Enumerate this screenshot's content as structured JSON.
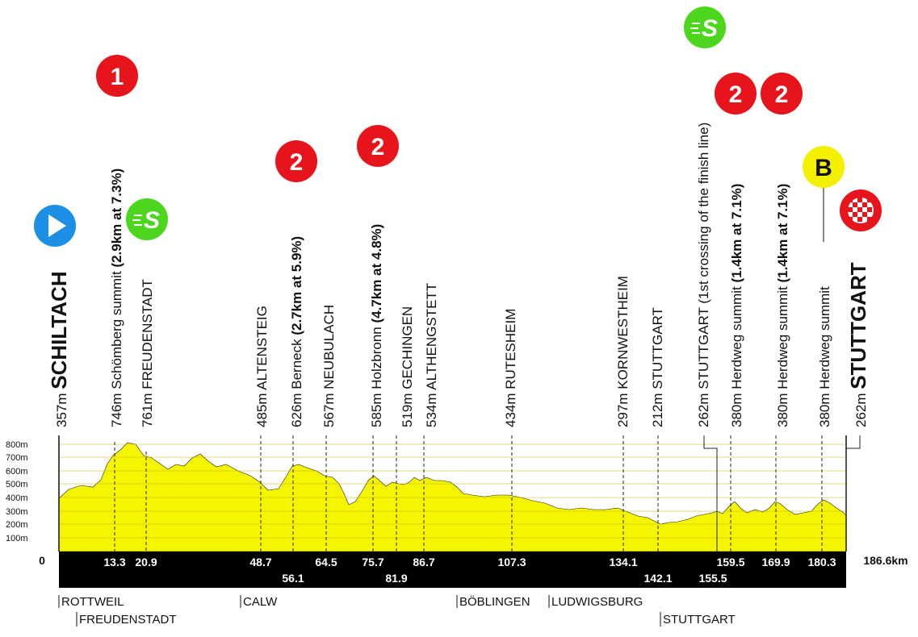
{
  "profile": {
    "start_km_label": "0",
    "end_km_label": "186.6km",
    "altitude_ticks": [
      "800m",
      "700m",
      "600m",
      "500m",
      "400m",
      "300m",
      "200m",
      "100m"
    ],
    "labels": [
      {
        "alt": "357m",
        "name": "SCHILTACH",
        "detail": "",
        "bold": true
      },
      {
        "alt": "746m",
        "name": "Schömberg summit",
        "detail": "(2.9km at 7.3%)",
        "bold": false
      },
      {
        "alt": "761m",
        "name": "FREUDENSTADT",
        "detail": "",
        "bold": false
      },
      {
        "alt": "485m",
        "name": "ALTENSTEIG",
        "detail": "",
        "bold": false
      },
      {
        "alt": "626m",
        "name": "Berneck",
        "detail": "(2.7km at 5.9%)",
        "bold": false
      },
      {
        "alt": "567m",
        "name": "NEUBULACH",
        "detail": "",
        "bold": false
      },
      {
        "alt": "585m",
        "name": "Holzbronn",
        "detail": "(4.7km at 4.8%)",
        "bold": false
      },
      {
        "alt": "519m",
        "name": "GECHINGEN",
        "detail": "",
        "bold": false
      },
      {
        "alt": "534m",
        "name": "ALTHENGSTETT",
        "detail": "",
        "bold": false
      },
      {
        "alt": "434m",
        "name": "RUTESHEIM",
        "detail": "",
        "bold": false
      },
      {
        "alt": "297m",
        "name": "KORNWESTHEIM",
        "detail": "",
        "bold": false
      },
      {
        "alt": "212m",
        "name": "STUTTGART",
        "detail": "",
        "bold": false
      },
      {
        "alt": "262m",
        "name": "STUTTGART (1st crossing of the finish line)",
        "detail": "",
        "bold": false
      },
      {
        "alt": "380m",
        "name": "Herdweg summit",
        "detail": "(1.4km at 7.1%)",
        "bold": false
      },
      {
        "alt": "380m",
        "name": "Herdweg summit",
        "detail": "(1.4km at 7.1%)",
        "bold": false
      },
      {
        "alt": "380m",
        "name": "Herdweg summit",
        "detail": "",
        "bold": false
      },
      {
        "alt": "262m",
        "name": "STUTTGART",
        "detail": "",
        "bold": true
      }
    ],
    "km_markers_top": [
      "13.3",
      "20.9",
      "48.7",
      "64.5",
      "75.7",
      "86.7",
      "107.3",
      "134.1",
      "159.5",
      "169.9",
      "180.3"
    ],
    "km_markers_bottom": [
      "56.1",
      "81.9",
      "142.1",
      "155.5"
    ],
    "regions_row1": [
      "ROTTWEIL",
      "CALW",
      "BÖBLINGEN",
      "LUDWIGSBURG"
    ],
    "regions_row2": [
      "FREUDENSTADT",
      "STUTTGART"
    ],
    "badges": {
      "start": "start-icon",
      "kom1": "1",
      "kom2": "2",
      "bonus": "B",
      "sprint": "S",
      "finish": "finish-flag-icon"
    },
    "colors": {
      "profile_fill": "#f5f500",
      "kom_red": "#e8141c",
      "sprint_green": "#4cd61e",
      "start_blue": "#1e8fe6",
      "bonus_yellow": "#f5f000"
    }
  }
}
